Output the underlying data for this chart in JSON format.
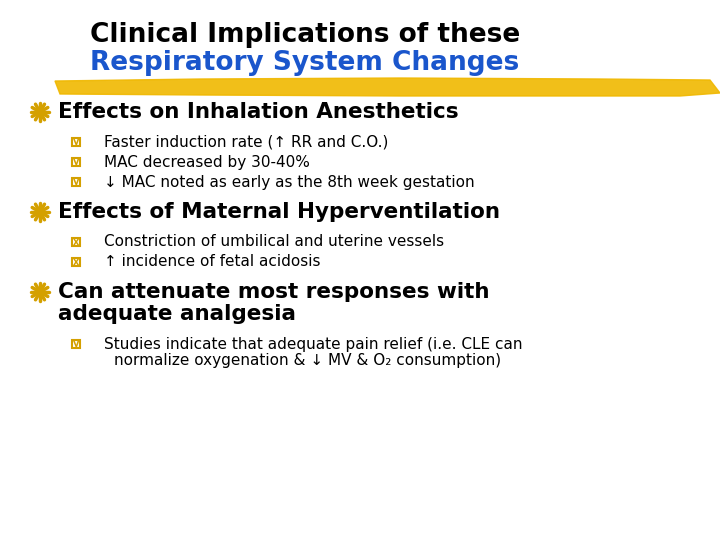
{
  "background_color": "#ffffff",
  "title_line1": "Clinical Implications of these",
  "title_line2": "Respiratory System Changes",
  "title_line1_color": "#000000",
  "title_line2_color": "#1a56cc",
  "highlight_color": "#f0b800",
  "bullet_z_color": "#d4a000",
  "bullet_y_color": "#d4a000",
  "bullet_x_color": "#d4a000",
  "sections": [
    {
      "heading": "Effects on Inhalation Anesthetics",
      "sub_bullets": [
        {
          "marker": "y",
          "text": "Faster induction rate (↑ RR and C.O.)"
        },
        {
          "marker": "y",
          "text": "MAC decreased by 30-40%"
        },
        {
          "marker": "y",
          "text": "↓ MAC noted as early as the 8th week gestation"
        }
      ]
    },
    {
      "heading": "Effects of Maternal Hyperventilation",
      "sub_bullets": [
        {
          "marker": "x",
          "text": "Constriction of umbilical and uterine vessels"
        },
        {
          "marker": "x",
          "text": "↑ incidence of fetal acidosis"
        }
      ]
    },
    {
      "heading2": [
        "Can attenuate most responses with",
        "adequate analgesia"
      ],
      "sub_bullets": [
        {
          "marker": "y",
          "text2": [
            "Studies indicate that adequate pain relief (i.e. CLE can",
            "normalize oxygenation & ↓ MV & O₂ consumption)"
          ]
        }
      ]
    }
  ]
}
